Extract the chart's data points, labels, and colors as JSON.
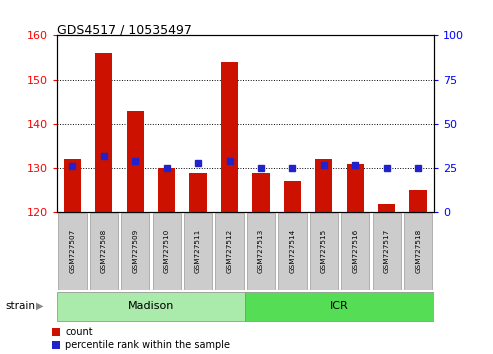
{
  "title": "GDS4517 / 10535497",
  "samples": [
    "GSM727507",
    "GSM727508",
    "GSM727509",
    "GSM727510",
    "GSM727511",
    "GSM727512",
    "GSM727513",
    "GSM727514",
    "GSM727515",
    "GSM727516",
    "GSM727517",
    "GSM727518"
  ],
  "counts": [
    132,
    156,
    143,
    130,
    129,
    154,
    129,
    127,
    132,
    131,
    122,
    125
  ],
  "percentiles": [
    26,
    32,
    29,
    25,
    28,
    29,
    25,
    25,
    27,
    27,
    25,
    25
  ],
  "ylim_left": [
    120,
    160
  ],
  "ylim_right": [
    0,
    100
  ],
  "yticks_left": [
    120,
    130,
    140,
    150,
    160
  ],
  "yticks_right": [
    0,
    25,
    50,
    75,
    100
  ],
  "bar_color": "#cc1100",
  "dot_color": "#2222cc",
  "strain_groups": [
    {
      "label": "Madison",
      "start": 0,
      "end": 6,
      "color": "#aaeaaa"
    },
    {
      "label": "ICR",
      "start": 6,
      "end": 12,
      "color": "#55dd55"
    }
  ],
  "legend_count": "count",
  "legend_pct": "percentile rank within the sample",
  "strain_label": "strain"
}
